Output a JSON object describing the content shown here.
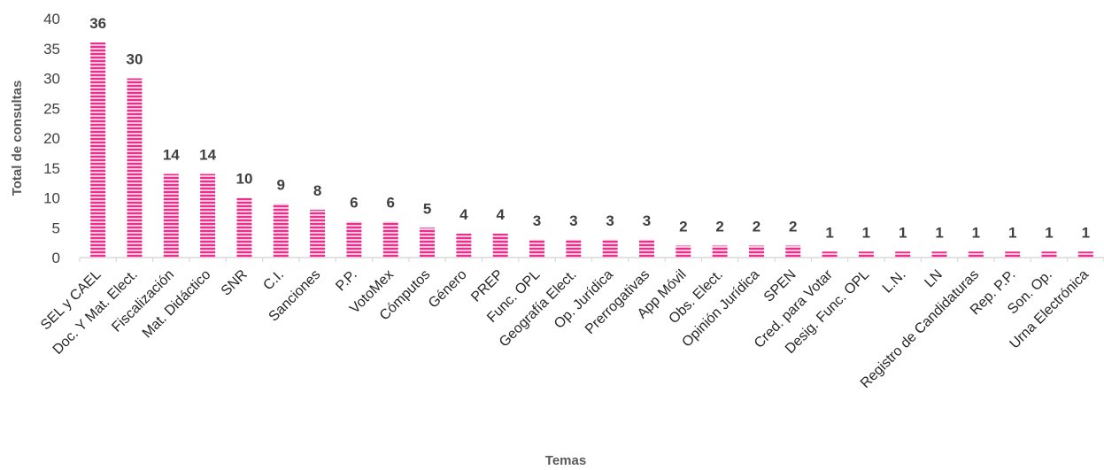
{
  "chart_data": {
    "type": "bar",
    "xlabel": "Temas",
    "ylabel": "Total de consultas",
    "ylim": [
      0,
      40
    ],
    "yticks": [
      0,
      5,
      10,
      15,
      20,
      25,
      30,
      35,
      40
    ],
    "grid": false,
    "legend": "none",
    "bar_color": "#e8308c",
    "categories": [
      "SEL y CAEL",
      "Doc. Y Mat. Elect.",
      "Fiscalización",
      "Mat. Didáctico",
      "SNR",
      "C.I.",
      "Sanciones",
      "P.P.",
      "VotoMex",
      "Cómputos",
      "Género",
      "PREP",
      "Func. OPL",
      "Geografía Elect.",
      "Op. Jurídica",
      "Prerrogativas",
      "App Móvil",
      "Obs. Elect.",
      "Opinión Jurídica",
      "SPEN",
      "Cred. para Votar",
      "Desig. Func. OPL",
      "L.N.",
      "LN",
      "Registro de Candidaturas",
      "Rep. P.P.",
      "Son. Op.",
      "Urna Electrónica"
    ],
    "values": [
      36,
      30,
      14,
      14,
      10,
      9,
      8,
      6,
      6,
      5,
      4,
      4,
      3,
      3,
      3,
      3,
      2,
      2,
      2,
      2,
      1,
      1,
      1,
      1,
      1,
      1,
      1,
      1
    ]
  }
}
